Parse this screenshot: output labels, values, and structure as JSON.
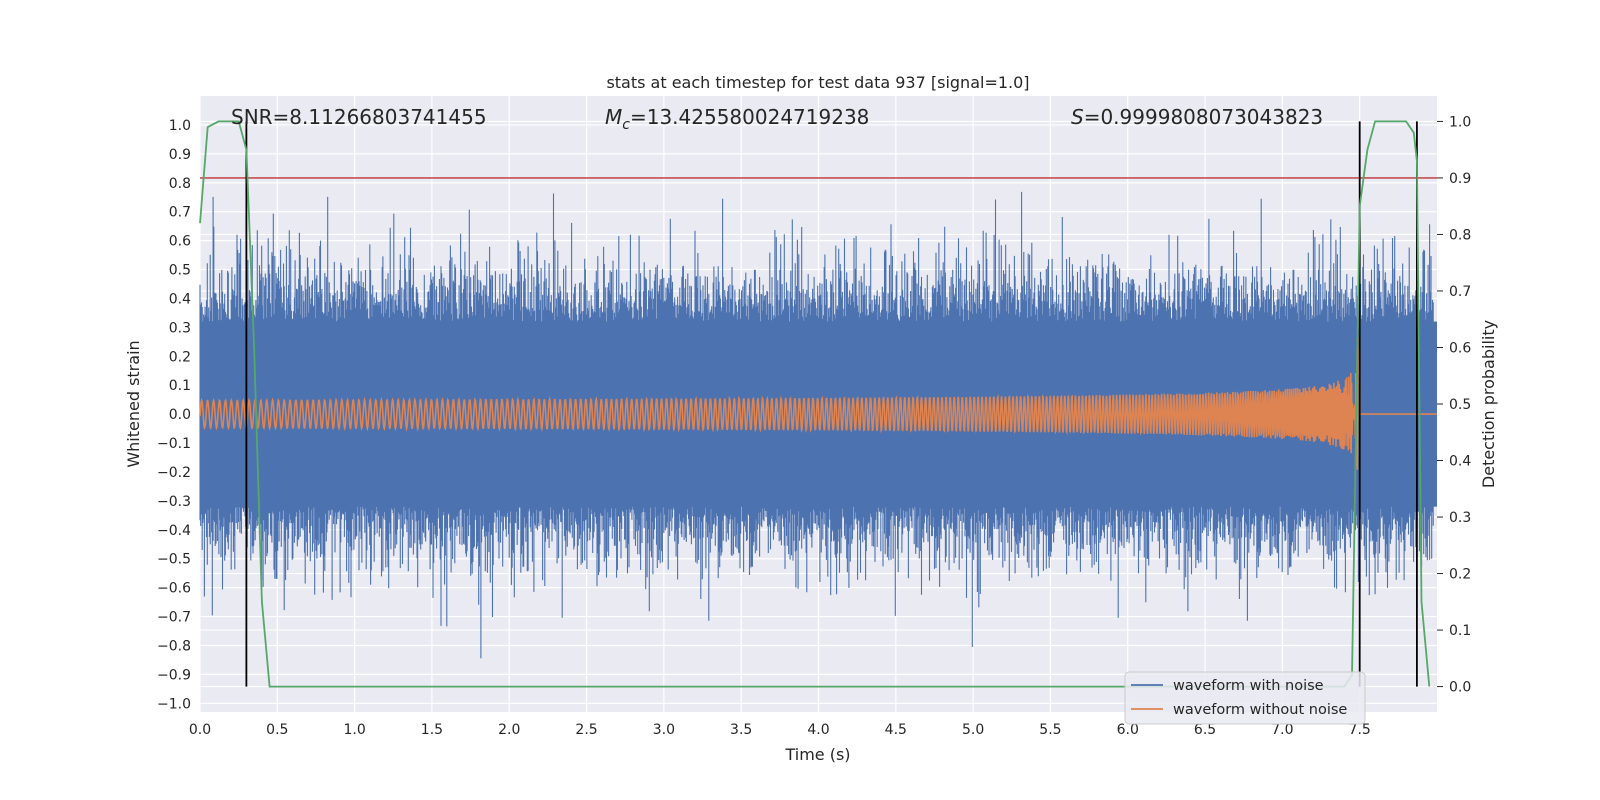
{
  "chart_data": {
    "type": "line",
    "title": "stats at each timestep for test data 937 [signal=1.0]",
    "xlabel": "Time (s)",
    "ylabel": "Whitened strain",
    "ylabel_right": "Detection probability",
    "xlim": [
      0.0,
      8.0
    ],
    "ylim": [
      -1.03,
      1.1
    ],
    "ylim_right": [
      -0.045,
      1.045
    ],
    "xticks": [
      "0.0",
      "0.5",
      "1.0",
      "1.5",
      "2.0",
      "2.5",
      "3.0",
      "3.5",
      "4.0",
      "4.5",
      "5.0",
      "5.5",
      "6.0",
      "6.5",
      "7.0",
      "7.5"
    ],
    "yticks": [
      "1.0",
      "0.9",
      "0.8",
      "0.7",
      "0.6",
      "0.5",
      "0.4",
      "0.3",
      "0.2",
      "0.1",
      "0.0",
      "−0.1",
      "−0.2",
      "−0.3",
      "−0.4",
      "−0.5",
      "−0.6",
      "−0.7",
      "−0.8",
      "−0.9",
      "−1.0"
    ],
    "yticks_right": [
      "1.0",
      "0.9",
      "0.8",
      "0.7",
      "0.6",
      "0.5",
      "0.4",
      "0.3",
      "0.2",
      "0.1",
      "0.0"
    ],
    "annotations": {
      "snr": "SNR=8.11266803741455",
      "mc_symbol": "M",
      "mc_sub": "c",
      "mc_value": "=13.425580024719238",
      "s_symbol": "S",
      "s_value": "=0.9999808073043823"
    },
    "threshold": {
      "y_right": 0.9,
      "color": "#c44e52"
    },
    "vertical_lines_x": [
      0.3,
      7.5,
      7.87
    ],
    "series": [
      {
        "name": "waveform with noise",
        "color": "#4c72b0",
        "noise_band": 0.32,
        "peak_extent": 1.0,
        "x_range": [
          0.0,
          8.0
        ]
      },
      {
        "name": "waveform without noise",
        "color": "#dd8452",
        "merger_time": 7.5,
        "start_amplitude": 0.008,
        "peak_amplitude": 0.27,
        "x_range": [
          0.0,
          8.0
        ]
      },
      {
        "name": "detection probability",
        "color": "#55a868",
        "axis": "right",
        "x": [
          0.0,
          0.05,
          0.12,
          0.2,
          0.25,
          0.3,
          0.35,
          0.4,
          0.45,
          7.4,
          7.45,
          7.5,
          7.55,
          7.6,
          7.7,
          7.8,
          7.85,
          7.87,
          7.9,
          7.95
        ],
        "y": [
          0.82,
          0.99,
          1.0,
          1.0,
          1.0,
          0.95,
          0.6,
          0.15,
          0.0,
          0.0,
          0.02,
          0.85,
          0.95,
          1.0,
          1.0,
          1.0,
          0.98,
          0.93,
          0.15,
          0.0
        ]
      }
    ],
    "legend": {
      "placement": "lower-right",
      "entries": [
        "waveform with noise",
        "waveform without noise"
      ]
    }
  }
}
